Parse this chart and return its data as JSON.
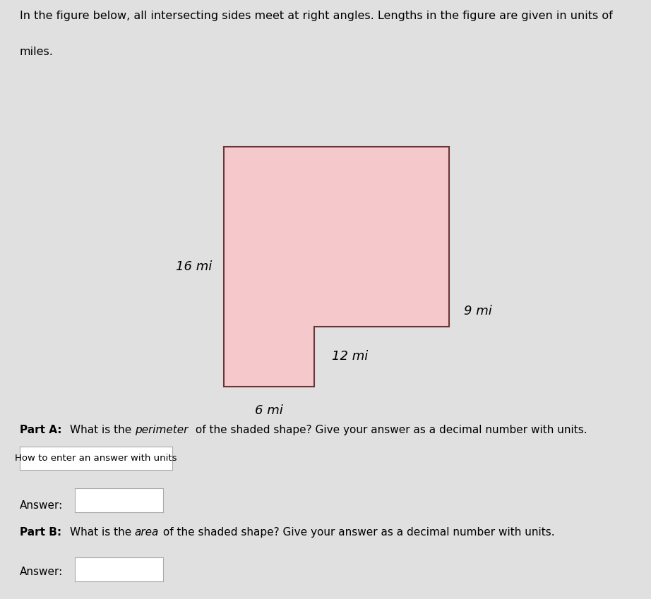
{
  "shape_color": "#f5c8cc",
  "shape_edge_color": "#6b3535",
  "shape_linewidth": 1.5,
  "label_16": "16 mi",
  "label_9": "9 mi",
  "label_12": "12 mi",
  "label_6": "6 mi",
  "font_size_labels": 13,
  "font_style": "italic",
  "bg_color": "#e0e0e0",
  "header_line1": "In the figure below, all intersecting sides meet at right angles. Lengths in the figure are given in units of",
  "header_line2": "miles.",
  "header_fontsize": 11.5,
  "how_to_text": "How to enter an answer with units",
  "answer_label": "Answer:",
  "answer_fontsize": 11,
  "partA_prefix": "Part A: ",
  "partA_normal1": "What is the ",
  "partA_italic": "perimeter",
  "partA_normal2": " of the shaded shape? Give your answer as a decimal number with units.",
  "partB_prefix": "Part B: ",
  "partB_normal1": "What is the ",
  "partB_italic": "area",
  "partB_normal2": " of the shaded shape? Give your answer as a decimal number with units.",
  "fig_width": 9.22,
  "fig_height": 8.49,
  "vx": [
    0,
    6,
    6,
    15,
    15,
    0
  ],
  "vy": [
    0,
    0,
    4,
    4,
    16,
    16
  ]
}
